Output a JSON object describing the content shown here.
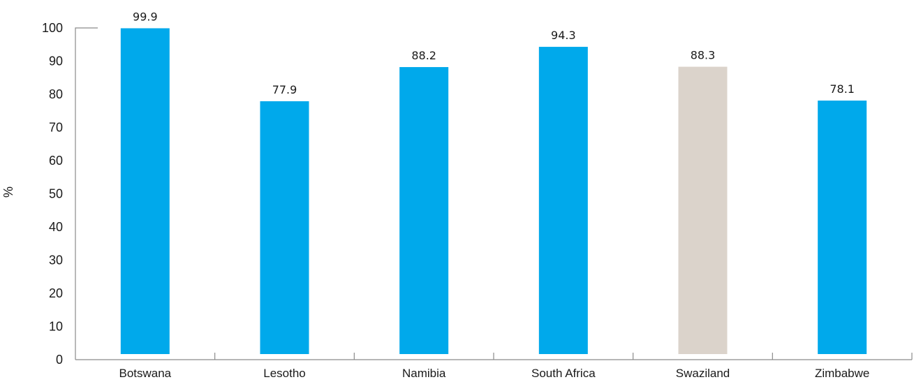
{
  "chart_data": {
    "type": "bar",
    "categories": [
      "Botswana",
      "Lesotho",
      "Namibia",
      "South Africa",
      "Swaziland",
      "Zimbabwe"
    ],
    "values": [
      99.9,
      77.9,
      88.2,
      94.3,
      88.3,
      78.1
    ],
    "data_labels": [
      "99.9",
      "77.9",
      "88.2",
      "94.3",
      "88.3",
      "78.1"
    ],
    "bar_colors": [
      "#00a9eb",
      "#00a9eb",
      "#00a9eb",
      "#00a9eb",
      "#dbd3cb",
      "#00a9eb"
    ],
    "title": "",
    "xlabel": "",
    "ylabel": "%",
    "ylim": [
      0,
      100
    ],
    "yticks": [
      "0",
      "10",
      "20",
      "30",
      "40",
      "50",
      "60",
      "70",
      "80",
      "90",
      "100"
    ],
    "grid": false,
    "legend": "none"
  }
}
